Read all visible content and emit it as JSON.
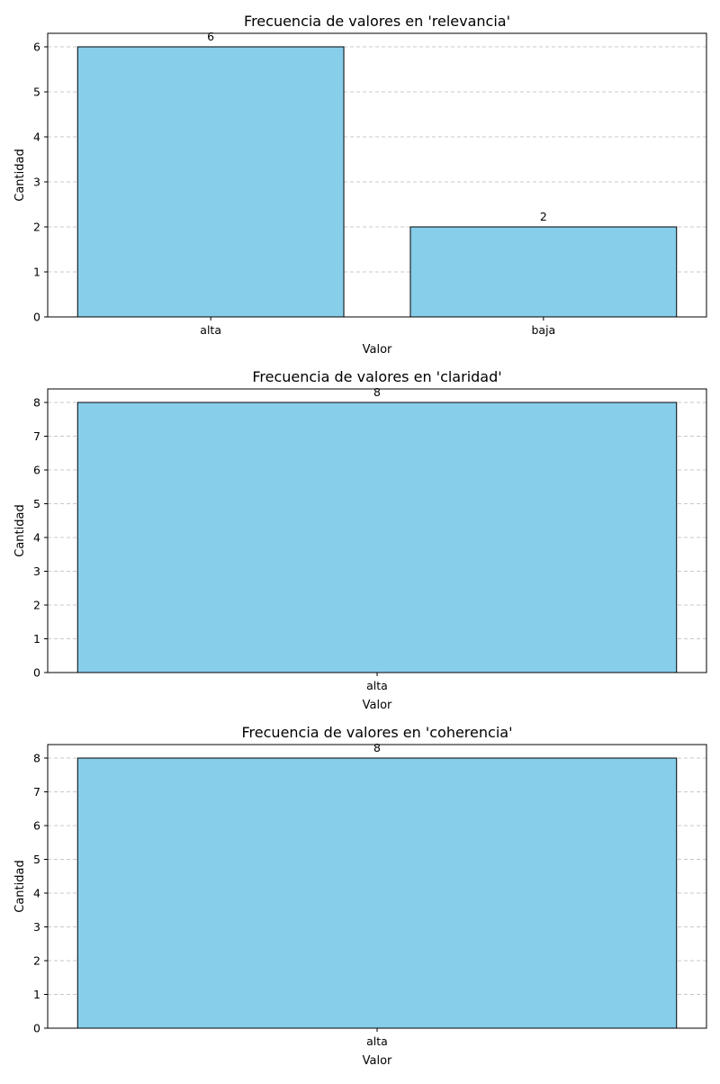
{
  "chart_data": [
    {
      "type": "bar",
      "title": "Frecuencia de valores en 'relevancia'",
      "xlabel": "Valor",
      "ylabel": "Cantidad",
      "categories": [
        "alta",
        "baja"
      ],
      "values": [
        6,
        2
      ],
      "data_labels": [
        "6",
        "2"
      ],
      "ylim": [
        0,
        6.3
      ],
      "yticks": [
        0,
        1,
        2,
        3,
        4,
        5,
        6
      ],
      "grid": "y",
      "bar_color": "#87ceeb",
      "edge_color": "#000000"
    },
    {
      "type": "bar",
      "title": "Frecuencia de valores en 'claridad'",
      "xlabel": "Valor",
      "ylabel": "Cantidad",
      "categories": [
        "alta"
      ],
      "values": [
        8
      ],
      "data_labels": [
        "8"
      ],
      "ylim": [
        0,
        8.4
      ],
      "yticks": [
        0,
        1,
        2,
        3,
        4,
        5,
        6,
        7,
        8
      ],
      "grid": "y",
      "bar_color": "#87ceeb",
      "edge_color": "#000000"
    },
    {
      "type": "bar",
      "title": "Frecuencia de valores en 'coherencia'",
      "xlabel": "Valor",
      "ylabel": "Cantidad",
      "categories": [
        "alta"
      ],
      "values": [
        8
      ],
      "data_labels": [
        "8"
      ],
      "ylim": [
        0,
        8.4
      ],
      "yticks": [
        0,
        1,
        2,
        3,
        4,
        5,
        6,
        7,
        8
      ],
      "grid": "y",
      "bar_color": "#87ceeb",
      "edge_color": "#000000"
    }
  ]
}
